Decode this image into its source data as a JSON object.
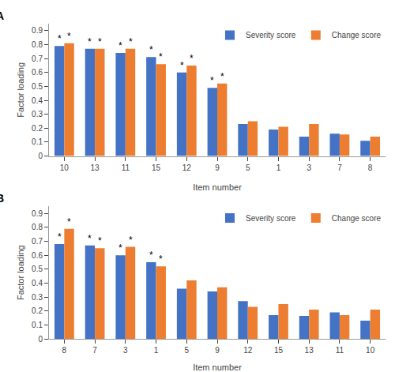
{
  "chart_data": [
    {
      "type": "bar",
      "title": "A",
      "categories": [
        "10",
        "13",
        "11",
        "15",
        "12",
        "9",
        "5",
        "1",
        "3",
        "7",
        "8"
      ],
      "series": [
        {
          "name": "Severity score",
          "color": "#4472C4",
          "values": [
            0.79,
            0.77,
            0.74,
            0.71,
            0.6,
            0.49,
            0.23,
            0.19,
            0.14,
            0.16,
            0.11
          ]
        },
        {
          "name": "Change score",
          "color": "#ED7D31",
          "values": [
            0.81,
            0.77,
            0.77,
            0.66,
            0.65,
            0.52,
            0.25,
            0.21,
            0.23,
            0.155,
            0.14
          ]
        }
      ],
      "annotations": [
        {
          "text": "*",
          "x": "10",
          "series": "Severity score"
        },
        {
          "text": "*",
          "x": "10",
          "series": "Change score"
        },
        {
          "text": "*",
          "x": "13",
          "series": "Severity score"
        },
        {
          "text": "*",
          "x": "13",
          "series": "Change score"
        },
        {
          "text": "*",
          "x": "11",
          "series": "Severity score"
        },
        {
          "text": "*",
          "x": "11",
          "series": "Change score"
        },
        {
          "text": "*",
          "x": "15",
          "series": "Severity score"
        },
        {
          "text": "*",
          "x": "15",
          "series": "Change score"
        },
        {
          "text": "*",
          "x": "12",
          "series": "Severity score"
        },
        {
          "text": "*",
          "x": "12",
          "series": "Change score"
        },
        {
          "text": "*",
          "x": "9",
          "series": "Severity score"
        },
        {
          "text": "*",
          "x": "9",
          "series": "Change score"
        }
      ],
      "xlabel": "Item number",
      "ylabel": "Factor loading",
      "ylim": [
        0,
        0.95
      ],
      "yticks": [
        0,
        0.1,
        0.2,
        0.3,
        0.4,
        0.5,
        0.6,
        0.7,
        0.8,
        0.9
      ],
      "grid": false,
      "legend": "upper right"
    },
    {
      "type": "bar",
      "title": "B",
      "categories": [
        "8",
        "7",
        "3",
        "1",
        "5",
        "9",
        "12",
        "15",
        "13",
        "11",
        "10"
      ],
      "series": [
        {
          "name": "Severity score",
          "color": "#4472C4",
          "values": [
            0.68,
            0.67,
            0.6,
            0.55,
            0.36,
            0.34,
            0.27,
            0.17,
            0.165,
            0.19,
            0.13
          ]
        },
        {
          "name": "Change score",
          "color": "#ED7D31",
          "values": [
            0.79,
            0.65,
            0.66,
            0.52,
            0.42,
            0.37,
            0.23,
            0.25,
            0.21,
            0.17,
            0.21
          ]
        }
      ],
      "annotations": [
        {
          "text": "*",
          "x": "8",
          "series": "Severity score"
        },
        {
          "text": "*",
          "x": "8",
          "series": "Change score"
        },
        {
          "text": "*",
          "x": "7",
          "series": "Severity score"
        },
        {
          "text": "*",
          "x": "7",
          "series": "Change score"
        },
        {
          "text": "*",
          "x": "3",
          "series": "Severity score"
        },
        {
          "text": "*",
          "x": "3",
          "series": "Change score"
        },
        {
          "text": "*",
          "x": "1",
          "series": "Severity score"
        },
        {
          "text": "*",
          "x": "1",
          "series": "Change score"
        }
      ],
      "xlabel": "Item number",
      "ylabel": "Factor loading",
      "ylim": [
        0,
        0.95
      ],
      "yticks": [
        0,
        0.1,
        0.2,
        0.3,
        0.4,
        0.5,
        0.6,
        0.7,
        0.8,
        0.9
      ],
      "grid": false,
      "legend": "upper right"
    }
  ]
}
